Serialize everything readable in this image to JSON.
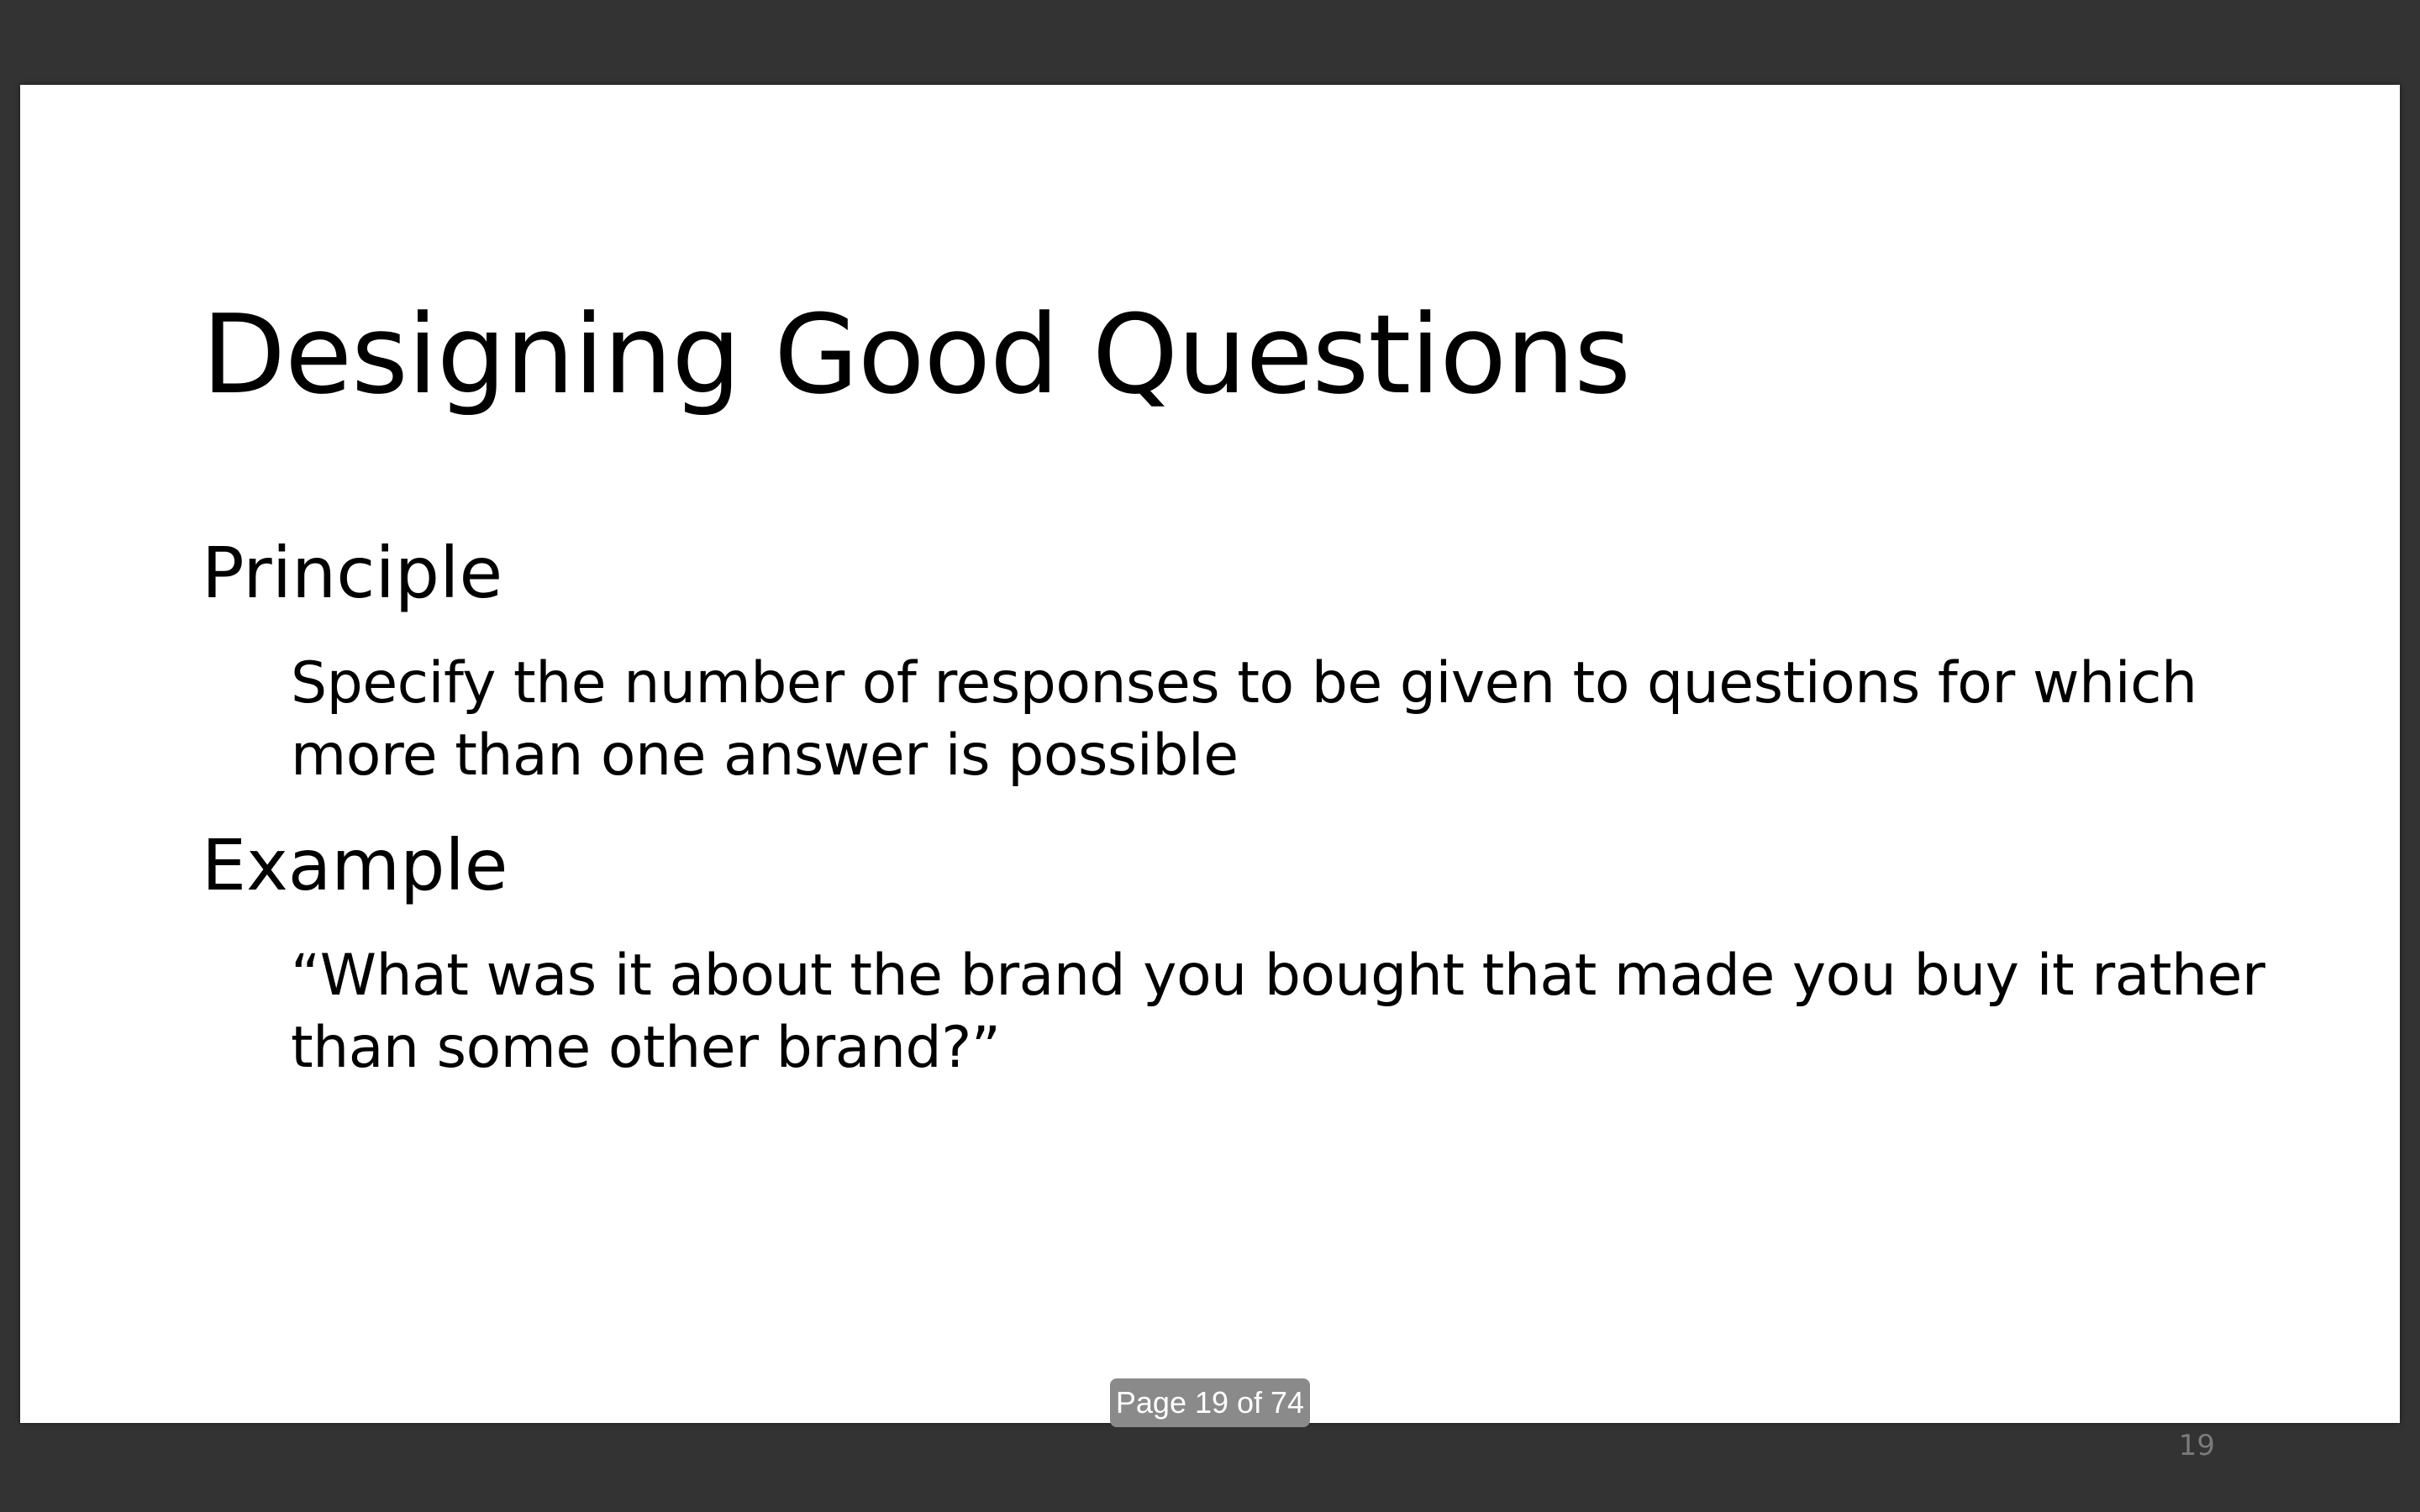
{
  "slide": {
    "title": "Designing Good Questions",
    "principle": {
      "heading": "Principle",
      "text": "Specify the number of responses to be given to questions for which more than one answer is possible"
    },
    "example": {
      "heading": "Example",
      "text": "“What was it about the brand you bought that made you buy it rather than some other brand?”"
    },
    "slide_number": "19"
  },
  "viewer": {
    "page_indicator": "Page 19 of 74"
  }
}
